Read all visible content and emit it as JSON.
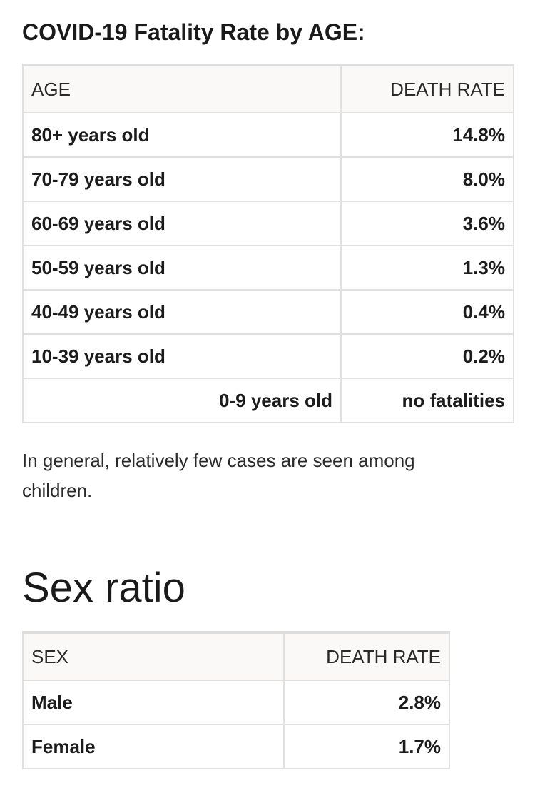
{
  "age_section": {
    "title": "COVID-19 Fatality Rate by AGE:",
    "headers": [
      "AGE",
      "DEATH RATE"
    ],
    "rows": [
      {
        "label": "80+ years old",
        "value": "14.8%"
      },
      {
        "label": "70-79 years old",
        "value": "8.0%"
      },
      {
        "label": "60-69 years old",
        "value": "3.6%"
      },
      {
        "label": "50-59 years old",
        "value": "1.3%"
      },
      {
        "label": "40-49 years old",
        "value": "0.4%"
      },
      {
        "label": "10-39 years old",
        "value": "0.2%"
      },
      {
        "label": "0-9 years old",
        "value": "no fatalities"
      }
    ]
  },
  "note": "In general, relatively few cases are seen among children.",
  "sex_section": {
    "title": "Sex ratio",
    "headers": [
      "SEX",
      "DEATH RATE"
    ],
    "rows": [
      {
        "label": "Male",
        "value": "2.8%"
      },
      {
        "label": "Female",
        "value": "1.7%"
      }
    ]
  }
}
